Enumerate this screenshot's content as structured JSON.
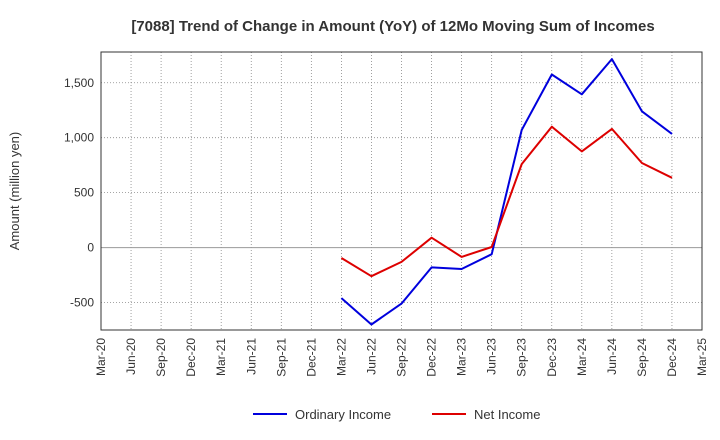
{
  "chart_data": {
    "type": "line",
    "title": "[7088]  Trend of Change in Amount (YoY) of 12Mo Moving Sum of Incomes",
    "xlabel": "",
    "ylabel": "Amount (million yen)",
    "categories": [
      "Mar-20",
      "Jun-20",
      "Sep-20",
      "Dec-20",
      "Mar-21",
      "Jun-21",
      "Sep-21",
      "Dec-21",
      "Mar-22",
      "Jun-22",
      "Sep-22",
      "Dec-22",
      "Mar-23",
      "Jun-23",
      "Sep-23",
      "Dec-23",
      "Mar-24",
      "Jun-24",
      "Sep-24",
      "Dec-24",
      "Mar-25"
    ],
    "y_ticks": [
      {
        "value": -500,
        "label": "-500"
      },
      {
        "value": 0,
        "label": "0"
      },
      {
        "value": 500,
        "label": "500"
      },
      {
        "value": 1000,
        "label": "1,000"
      },
      {
        "value": 1500,
        "label": "1,500"
      }
    ],
    "ylim": [
      -750,
      1780
    ],
    "grid": true,
    "legend_position": "bottom",
    "series": [
      {
        "name": "Ordinary Income",
        "color": "#0000dd",
        "values": [
          null,
          null,
          null,
          null,
          null,
          null,
          null,
          null,
          -460,
          -700,
          -510,
          -180,
          -195,
          -60,
          1070,
          1575,
          1395,
          1715,
          1240,
          1035,
          null
        ]
      },
      {
        "name": "Net Income",
        "color": "#dd0000",
        "values": [
          null,
          null,
          null,
          null,
          null,
          null,
          null,
          null,
          -95,
          -260,
          -130,
          90,
          -85,
          5,
          760,
          1100,
          875,
          1080,
          770,
          635,
          null
        ]
      }
    ]
  }
}
